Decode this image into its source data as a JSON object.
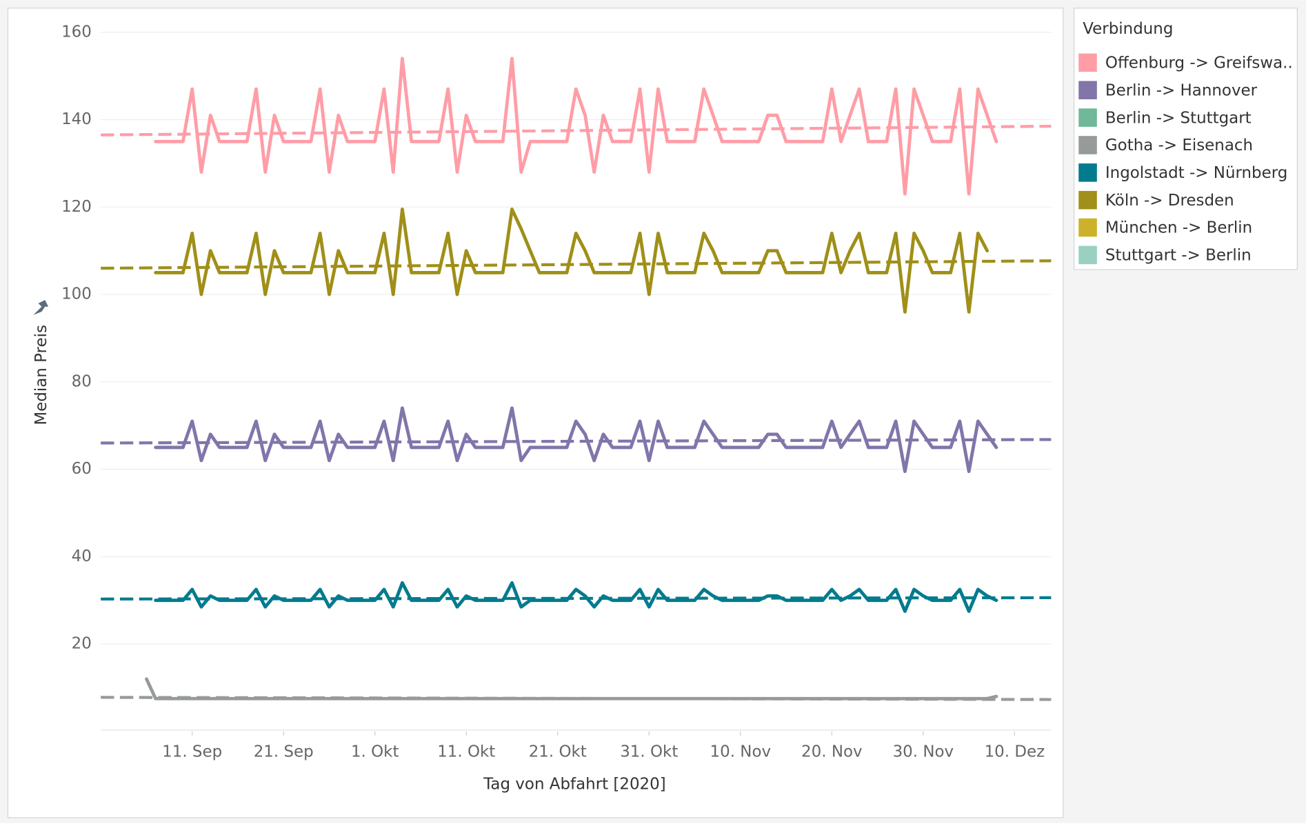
{
  "chart_data": {
    "type": "line",
    "x_title": "Tag von Abfahrt [2020]",
    "y_title": "Median Preis",
    "legend_title": "Verbindung",
    "legend": "right",
    "grid": true,
    "ylim": [
      0,
      162
    ],
    "yticks": [
      20,
      40,
      60,
      80,
      100,
      120,
      140,
      160
    ],
    "xlim": [
      "2020-09-01",
      "2020-12-14"
    ],
    "xticks": [
      {
        "value": "2020-09-11",
        "label": "11. Sep"
      },
      {
        "value": "2020-09-21",
        "label": "21. Sep"
      },
      {
        "value": "2020-10-01",
        "label": "1. Okt"
      },
      {
        "value": "2020-10-11",
        "label": "11. Okt"
      },
      {
        "value": "2020-10-21",
        "label": "21. Okt"
      },
      {
        "value": "2020-10-31",
        "label": "31. Okt"
      },
      {
        "value": "2020-11-10",
        "label": "10. Nov"
      },
      {
        "value": "2020-11-20",
        "label": "20. Nov"
      },
      {
        "value": "2020-11-30",
        "label": "30. Nov"
      },
      {
        "value": "2020-12-10",
        "label": "10. Dez"
      }
    ],
    "x": [
      "2020-09-06",
      "2020-09-07",
      "2020-09-08",
      "2020-09-09",
      "2020-09-10",
      "2020-09-11",
      "2020-09-12",
      "2020-09-13",
      "2020-09-14",
      "2020-09-15",
      "2020-09-16",
      "2020-09-17",
      "2020-09-18",
      "2020-09-19",
      "2020-09-20",
      "2020-09-21",
      "2020-09-22",
      "2020-09-23",
      "2020-09-24",
      "2020-09-25",
      "2020-09-26",
      "2020-09-27",
      "2020-09-28",
      "2020-09-29",
      "2020-09-30",
      "2020-10-01",
      "2020-10-02",
      "2020-10-03",
      "2020-10-04",
      "2020-10-05",
      "2020-10-06",
      "2020-10-07",
      "2020-10-08",
      "2020-10-09",
      "2020-10-10",
      "2020-10-11",
      "2020-10-12",
      "2020-10-13",
      "2020-10-14",
      "2020-10-15",
      "2020-10-16",
      "2020-10-17",
      "2020-10-18",
      "2020-10-19",
      "2020-10-20",
      "2020-10-21",
      "2020-10-22",
      "2020-10-23",
      "2020-10-24",
      "2020-10-25",
      "2020-10-26",
      "2020-10-27",
      "2020-10-28",
      "2020-10-29",
      "2020-10-30",
      "2020-10-31",
      "2020-11-01",
      "2020-11-02",
      "2020-11-03",
      "2020-11-04",
      "2020-11-05",
      "2020-11-06",
      "2020-11-07",
      "2020-11-08",
      "2020-11-09",
      "2020-11-10",
      "2020-11-11",
      "2020-11-12",
      "2020-11-13",
      "2020-11-14",
      "2020-11-15",
      "2020-11-16",
      "2020-11-17",
      "2020-11-18",
      "2020-11-19",
      "2020-11-20",
      "2020-11-21",
      "2020-11-22",
      "2020-11-23",
      "2020-11-24",
      "2020-11-25",
      "2020-11-26",
      "2020-11-27",
      "2020-11-28",
      "2020-11-29",
      "2020-11-30",
      "2020-12-01",
      "2020-12-02",
      "2020-12-03",
      "2020-12-04",
      "2020-12-05",
      "2020-12-06",
      "2020-12-07",
      "2020-12-08"
    ],
    "series": [
      {
        "name": "Offenburg -> Greifswa..",
        "color": "#ff9da7",
        "trend": [
          136.5,
          138.5
        ],
        "values": [
          null,
          135,
          135,
          135,
          135,
          147,
          128,
          141,
          135,
          135,
          135,
          135,
          147,
          128,
          141,
          135,
          135,
          135,
          135,
          147,
          128,
          141,
          135,
          135,
          135,
          135,
          147,
          128,
          154,
          135,
          135,
          135,
          135,
          147,
          128,
          141,
          135,
          135,
          135,
          135,
          154,
          128,
          135,
          135,
          135,
          135,
          135,
          147,
          141,
          128,
          141,
          135,
          135,
          135,
          147,
          128,
          147,
          135,
          135,
          135,
          135,
          147,
          141,
          135,
          135,
          135,
          135,
          135,
          141,
          141,
          135,
          135,
          135,
          135,
          135,
          147,
          135,
          141,
          147,
          135,
          135,
          135,
          147,
          123,
          147,
          141,
          135,
          135,
          135,
          147,
          123,
          147,
          141,
          135
        ]
      },
      {
        "name": "Berlin -> Hannover",
        "color": "#8175aa",
        "trend": [
          66,
          66.8
        ],
        "values": [
          null,
          65,
          65,
          65,
          65,
          71,
          62,
          68,
          65,
          65,
          65,
          65,
          71,
          62,
          68,
          65,
          65,
          65,
          65,
          71,
          62,
          68,
          65,
          65,
          65,
          65,
          71,
          62,
          74,
          65,
          65,
          65,
          65,
          71,
          62,
          68,
          65,
          65,
          65,
          65,
          74,
          62,
          65,
          65,
          65,
          65,
          65,
          71,
          68,
          62,
          68,
          65,
          65,
          65,
          71,
          62,
          71,
          65,
          65,
          65,
          65,
          71,
          68,
          65,
          65,
          65,
          65,
          65,
          68,
          68,
          65,
          65,
          65,
          65,
          65,
          71,
          65,
          68,
          71,
          65,
          65,
          65,
          71,
          59.5,
          71,
          68,
          65,
          65,
          65,
          71,
          59.5,
          71,
          68,
          65
        ]
      },
      {
        "name": "Berlin -> Stuttgart",
        "color": "#6fb899",
        "values": [
          null,
          null,
          null,
          null,
          null,
          null,
          null,
          null,
          null,
          null,
          null,
          null,
          null,
          null,
          null,
          null,
          null,
          null,
          null,
          null,
          null,
          null,
          null,
          null,
          null,
          null,
          null,
          null,
          null,
          null,
          null,
          null,
          null,
          null,
          null,
          null,
          null,
          null,
          null,
          null,
          null,
          null,
          null,
          null,
          null,
          null,
          null,
          null,
          null,
          null,
          null,
          null,
          null,
          null,
          null,
          null,
          null,
          null,
          null,
          null,
          null,
          null,
          null,
          null,
          null,
          null,
          null,
          null,
          null,
          null,
          null,
          null,
          null,
          null,
          null,
          null,
          null,
          null,
          null,
          null,
          null,
          null,
          null,
          null,
          null,
          null,
          null,
          null,
          null,
          null,
          null,
          null,
          null,
          null
        ]
      },
      {
        "name": "Gotha -> Eisenach",
        "color": "#979a9a",
        "trend": [
          7.8,
          7.3
        ],
        "values": [
          12,
          7.5,
          7.5,
          7.5,
          7.5,
          7.5,
          7.5,
          7.5,
          7.5,
          7.5,
          7.5,
          7.5,
          7.5,
          7.5,
          7.5,
          7.5,
          7.5,
          7.5,
          7.5,
          7.5,
          7.5,
          7.5,
          7.5,
          7.5,
          7.5,
          7.5,
          7.5,
          7.5,
          7.5,
          7.5,
          7.5,
          7.5,
          7.5,
          7.5,
          7.5,
          7.5,
          7.5,
          7.5,
          7.5,
          7.5,
          7.5,
          7.5,
          7.5,
          7.5,
          7.5,
          7.5,
          7.5,
          7.5,
          7.5,
          7.5,
          7.5,
          7.5,
          7.5,
          7.5,
          7.5,
          7.5,
          7.5,
          7.5,
          7.5,
          7.5,
          7.5,
          7.5,
          7.5,
          7.5,
          7.5,
          7.5,
          7.5,
          7.5,
          7.5,
          7.5,
          7.5,
          7.5,
          7.5,
          7.5,
          7.5,
          7.5,
          7.5,
          7.5,
          7.5,
          7.5,
          7.5,
          7.5,
          7.5,
          7.5,
          7.5,
          7.5,
          7.5,
          7.5,
          7.5,
          7.5,
          7.5,
          7.5,
          7.5,
          8
        ]
      },
      {
        "name": "Ingolstadt -> Nürnberg",
        "color": "#027b8e",
        "trend": [
          30.3,
          30.6
        ],
        "values": [
          null,
          30,
          30,
          30,
          30,
          32.5,
          28.5,
          31,
          30,
          30,
          30,
          30,
          32.5,
          28.5,
          31,
          30,
          30,
          30,
          30,
          32.5,
          28.5,
          31,
          30,
          30,
          30,
          30,
          32.5,
          28.5,
          34,
          30,
          30,
          30,
          30,
          32.5,
          28.5,
          31,
          30,
          30,
          30,
          30,
          34,
          28.5,
          30,
          30,
          30,
          30,
          30,
          32.5,
          31,
          28.5,
          31,
          30,
          30,
          30,
          32.5,
          28.5,
          32.5,
          30,
          30,
          30,
          30,
          32.5,
          31,
          30,
          30,
          30,
          30,
          30,
          31,
          31,
          30,
          30,
          30,
          30,
          30,
          32.5,
          30,
          31,
          32.5,
          30,
          30,
          30,
          32.5,
          27.5,
          32.5,
          31,
          30,
          30,
          30,
          32.5,
          27.5,
          32.5,
          31,
          30
        ]
      },
      {
        "name": "Köln -> Dresden",
        "color": "#a08f18",
        "trend": [
          106,
          107.7
        ],
        "values": [
          null,
          105,
          105,
          105,
          105,
          114,
          100,
          110,
          105,
          105,
          105,
          105,
          114,
          100,
          110,
          105,
          105,
          105,
          105,
          114,
          100,
          110,
          105,
          105,
          105,
          105,
          114,
          100,
          119.5,
          105,
          105,
          105,
          105,
          114,
          100,
          110,
          105,
          105,
          105,
          105,
          119.5,
          115,
          110,
          105,
          105,
          105,
          105,
          114,
          110,
          105,
          105,
          105,
          105,
          105,
          114,
          100,
          114,
          105,
          105,
          105,
          105,
          114,
          110,
          105,
          105,
          105,
          105,
          105,
          110,
          110,
          105,
          105,
          105,
          105,
          105,
          114,
          105,
          110,
          114,
          105,
          105,
          105,
          114,
          96,
          114,
          110,
          105,
          105,
          105,
          114,
          96,
          114,
          110,
          null
        ]
      },
      {
        "name": "München -> Berlin",
        "color": "#ccb22b",
        "values": [
          null,
          null,
          null,
          null,
          null,
          null,
          null,
          null,
          null,
          null,
          null,
          null,
          null,
          null,
          null,
          null,
          null,
          null,
          null,
          null,
          null,
          null,
          null,
          null,
          null,
          null,
          null,
          null,
          null,
          null,
          null,
          null,
          null,
          null,
          null,
          null,
          null,
          null,
          null,
          null,
          null,
          null,
          null,
          null,
          null,
          null,
          null,
          null,
          null,
          null,
          null,
          null,
          null,
          null,
          null,
          null,
          null,
          null,
          null,
          null,
          null,
          null,
          null,
          null,
          null,
          null,
          null,
          null,
          null,
          null,
          null,
          null,
          null,
          null,
          null,
          null,
          null,
          null,
          null,
          null,
          null,
          null,
          null,
          null,
          null,
          null,
          null,
          null,
          null,
          null,
          null,
          null,
          null,
          null
        ]
      },
      {
        "name": "Stuttgart -> Berlin",
        "color": "#99d0c2",
        "values": [
          null,
          null,
          null,
          null,
          null,
          null,
          null,
          null,
          null,
          null,
          null,
          null,
          null,
          null,
          null,
          null,
          null,
          null,
          null,
          null,
          null,
          null,
          null,
          null,
          null,
          null,
          null,
          null,
          null,
          null,
          null,
          null,
          null,
          null,
          null,
          null,
          null,
          null,
          null,
          null,
          null,
          null,
          null,
          null,
          null,
          null,
          null,
          null,
          null,
          null,
          null,
          null,
          null,
          null,
          null,
          null,
          null,
          null,
          null,
          null,
          null,
          null,
          null,
          null,
          null,
          null,
          null,
          null,
          null,
          null,
          null,
          null,
          null,
          null,
          null,
          null,
          null,
          null,
          null,
          null,
          null,
          null,
          null,
          null,
          null,
          null,
          null,
          null,
          null,
          null,
          null,
          null,
          null,
          null
        ]
      }
    ]
  }
}
